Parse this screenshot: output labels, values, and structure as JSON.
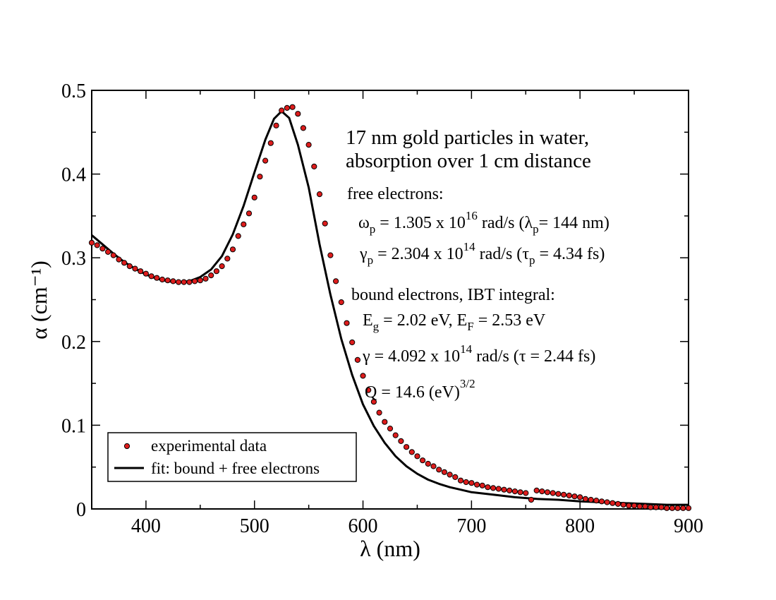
{
  "chart_data": {
    "type": "scatter",
    "xlabel": "λ (nm)",
    "ylabel": "α (cm⁻¹)",
    "xlim": [
      350,
      900
    ],
    "ylim": [
      0,
      0.5
    ],
    "x_ticks": [
      "400",
      "500",
      "600",
      "700",
      "800",
      "900"
    ],
    "y_ticks": [
      "0",
      "0.1",
      "0.2",
      "0.3",
      "0.4",
      "0.5"
    ],
    "x_tick_values": [
      400,
      500,
      600,
      700,
      800,
      900
    ],
    "y_tick_values": [
      0,
      0.1,
      0.2,
      0.3,
      0.4,
      0.5
    ],
    "x_minor_step": 50,
    "y_minor_step": 0.05,
    "legend": {
      "placement": "bottom-left",
      "entries": [
        {
          "label": "experimental data",
          "kind": "marker"
        },
        {
          "label": "fit: bound + free electrons",
          "kind": "line"
        }
      ]
    },
    "colors": {
      "marker_fill": "#dd1c1c",
      "marker_edge": "#000000",
      "line": "#000000"
    },
    "series": [
      {
        "name": "experimental data",
        "kind": "scatter",
        "points": [
          [
            350,
            0.318
          ],
          [
            355,
            0.315
          ],
          [
            360,
            0.311
          ],
          [
            365,
            0.307
          ],
          [
            370,
            0.303
          ],
          [
            375,
            0.298
          ],
          [
            380,
            0.294
          ],
          [
            385,
            0.29
          ],
          [
            390,
            0.287
          ],
          [
            395,
            0.284
          ],
          [
            400,
            0.281
          ],
          [
            405,
            0.278
          ],
          [
            410,
            0.276
          ],
          [
            415,
            0.274
          ],
          [
            420,
            0.273
          ],
          [
            425,
            0.272
          ],
          [
            430,
            0.271
          ],
          [
            435,
            0.271
          ],
          [
            440,
            0.271
          ],
          [
            445,
            0.272
          ],
          [
            450,
            0.273
          ],
          [
            455,
            0.275
          ],
          [
            460,
            0.279
          ],
          [
            465,
            0.284
          ],
          [
            470,
            0.29
          ],
          [
            475,
            0.299
          ],
          [
            480,
            0.31
          ],
          [
            485,
            0.326
          ],
          [
            490,
            0.34
          ],
          [
            495,
            0.353
          ],
          [
            500,
            0.372
          ],
          [
            505,
            0.397
          ],
          [
            510,
            0.416
          ],
          [
            515,
            0.437
          ],
          [
            520,
            0.458
          ],
          [
            525,
            0.476
          ],
          [
            530,
            0.479
          ],
          [
            535,
            0.48
          ],
          [
            540,
            0.472
          ],
          [
            545,
            0.455
          ],
          [
            550,
            0.435
          ],
          [
            555,
            0.409
          ],
          [
            560,
            0.376
          ],
          [
            565,
            0.341
          ],
          [
            570,
            0.303
          ],
          [
            575,
            0.272
          ],
          [
            580,
            0.247
          ],
          [
            585,
            0.222
          ],
          [
            590,
            0.199
          ],
          [
            595,
            0.178
          ],
          [
            600,
            0.159
          ],
          [
            605,
            0.142
          ],
          [
            610,
            0.128
          ],
          [
            615,
            0.115
          ],
          [
            620,
            0.104
          ],
          [
            625,
            0.096
          ],
          [
            630,
            0.088
          ],
          [
            635,
            0.081
          ],
          [
            640,
            0.074
          ],
          [
            645,
            0.068
          ],
          [
            650,
            0.063
          ],
          [
            655,
            0.058
          ],
          [
            660,
            0.054
          ],
          [
            665,
            0.051
          ],
          [
            670,
            0.047
          ],
          [
            675,
            0.044
          ],
          [
            680,
            0.041
          ],
          [
            685,
            0.038
          ],
          [
            690,
            0.034
          ],
          [
            695,
            0.032
          ],
          [
            700,
            0.031
          ],
          [
            705,
            0.029
          ],
          [
            710,
            0.028
          ],
          [
            715,
            0.026
          ],
          [
            720,
            0.025
          ],
          [
            725,
            0.024
          ],
          [
            730,
            0.023
          ],
          [
            735,
            0.022
          ],
          [
            740,
            0.021
          ],
          [
            745,
            0.02
          ],
          [
            750,
            0.019
          ],
          [
            755,
            0.011
          ],
          [
            760,
            0.022
          ],
          [
            765,
            0.021
          ],
          [
            770,
            0.02
          ],
          [
            775,
            0.019
          ],
          [
            780,
            0.018
          ],
          [
            785,
            0.017
          ],
          [
            790,
            0.016
          ],
          [
            795,
            0.015
          ],
          [
            800,
            0.014
          ],
          [
            805,
            0.012
          ],
          [
            810,
            0.011
          ],
          [
            815,
            0.01
          ],
          [
            820,
            0.009
          ],
          [
            825,
            0.008
          ],
          [
            830,
            0.007
          ],
          [
            835,
            0.006
          ],
          [
            840,
            0.005
          ],
          [
            845,
            0.004
          ],
          [
            850,
            0.004
          ],
          [
            855,
            0.003
          ],
          [
            860,
            0.003
          ],
          [
            865,
            0.002
          ],
          [
            870,
            0.002
          ],
          [
            875,
            0.002
          ],
          [
            880,
            0.001
          ],
          [
            885,
            0.001
          ],
          [
            890,
            0.001
          ],
          [
            895,
            0.001
          ],
          [
            900,
            0.001
          ]
        ]
      },
      {
        "name": "fit: bound + free electrons",
        "kind": "line",
        "points": [
          [
            350,
            0.327
          ],
          [
            360,
            0.316
          ],
          [
            370,
            0.305
          ],
          [
            380,
            0.295
          ],
          [
            390,
            0.287
          ],
          [
            400,
            0.28
          ],
          [
            410,
            0.275
          ],
          [
            420,
            0.272
          ],
          [
            430,
            0.271
          ],
          [
            440,
            0.272
          ],
          [
            450,
            0.277
          ],
          [
            460,
            0.286
          ],
          [
            470,
            0.302
          ],
          [
            480,
            0.328
          ],
          [
            490,
            0.362
          ],
          [
            500,
            0.402
          ],
          [
            510,
            0.441
          ],
          [
            518,
            0.466
          ],
          [
            525,
            0.475
          ],
          [
            532,
            0.467
          ],
          [
            540,
            0.435
          ],
          [
            550,
            0.384
          ],
          [
            560,
            0.316
          ],
          [
            570,
            0.256
          ],
          [
            580,
            0.203
          ],
          [
            590,
            0.16
          ],
          [
            600,
            0.125
          ],
          [
            610,
            0.099
          ],
          [
            620,
            0.079
          ],
          [
            630,
            0.063
          ],
          [
            640,
            0.051
          ],
          [
            650,
            0.042
          ],
          [
            660,
            0.035
          ],
          [
            670,
            0.03
          ],
          [
            680,
            0.026
          ],
          [
            690,
            0.023
          ],
          [
            700,
            0.02
          ],
          [
            720,
            0.017
          ],
          [
            740,
            0.014
          ],
          [
            760,
            0.012
          ],
          [
            780,
            0.011
          ],
          [
            800,
            0.009
          ],
          [
            820,
            0.008
          ],
          [
            840,
            0.007
          ],
          [
            860,
            0.006
          ],
          [
            880,
            0.005
          ],
          [
            900,
            0.005
          ]
        ]
      }
    ],
    "annotations": {
      "title_line1": "17 nm gold  particles in water,",
      "title_line2": "absorption over 1 cm distance",
      "free_header": "free electrons:",
      "omega_p_value": " = 1.305 x 10",
      "omega_p_exp": "16",
      "omega_p_unit": " rad/s  (",
      "lambda_p_value": "= 144 nm)",
      "gamma_p_value": "  = 2.304 x 10",
      "gamma_p_exp": "14",
      "gamma_p_unit": " rad/s  (",
      "tau_p_value": " = 4.34 fs)",
      "bound_header": "bound electrons, IBT integral:",
      "eg_value": " = 2.02 eV,    E",
      "ef_value": " = 2.53 eV",
      "gamma_value": "  = 4.092 x 10",
      "gamma_exp": "14",
      "gamma_unit": " rad/s  (",
      "tau_value": " = 2.44 fs)",
      "q_value": "Q = 14.6 (eV)",
      "q_exp": "3/2",
      "sym_omega": "ω",
      "sym_lambda": "λ",
      "sym_gamma": "γ",
      "sym_tau": "τ",
      "sub_p": "p",
      "sub_g": "g",
      "sub_F": "F",
      "E": "E"
    }
  }
}
